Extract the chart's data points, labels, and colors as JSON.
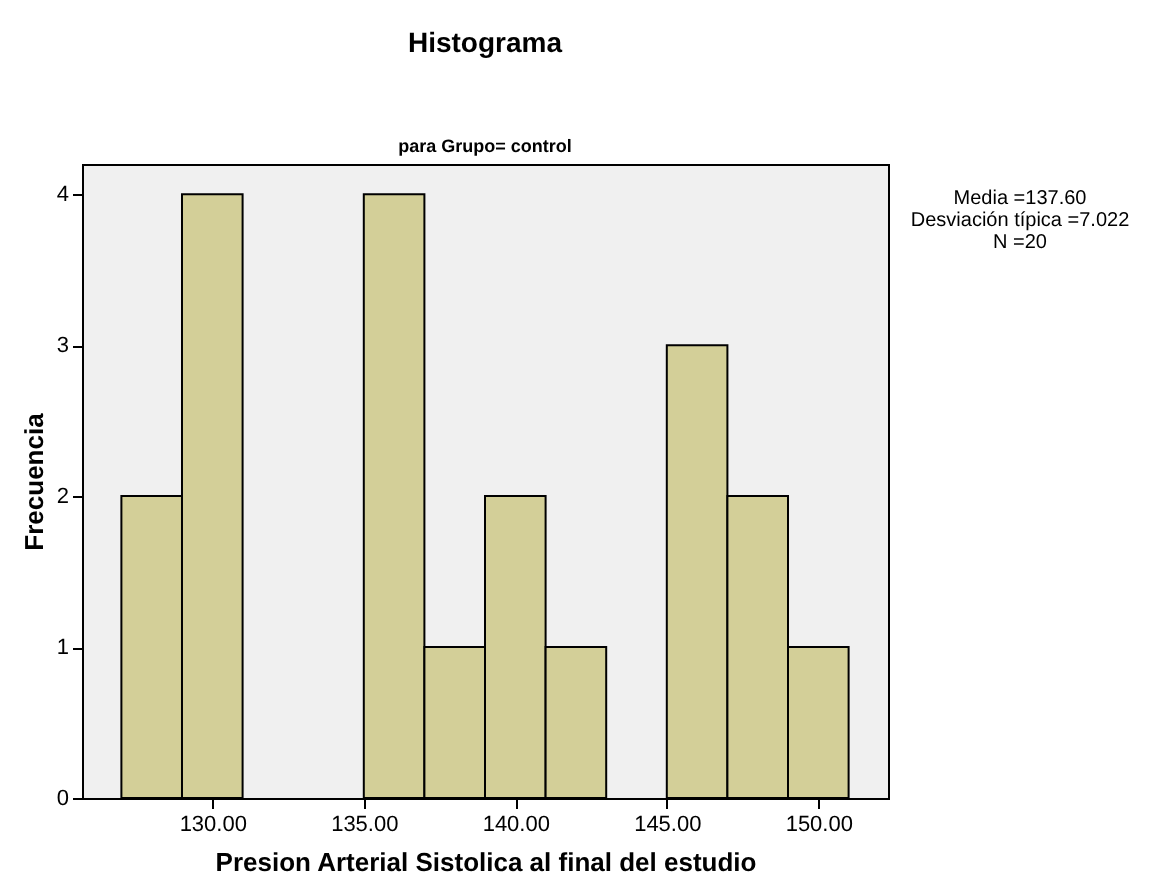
{
  "chart_data": {
    "type": "histogram",
    "title": "Histograma",
    "subtitle": "para Grupo= control",
    "xlabel": "Presion Arterial Sistolica al final del estudio",
    "ylabel": "Frecuencia",
    "bins": [
      127,
      129,
      131,
      133,
      135,
      137,
      139,
      141,
      143,
      145,
      147,
      149,
      151
    ],
    "values": [
      2,
      4,
      0,
      0,
      4,
      1,
      2,
      1,
      0,
      3,
      2,
      1
    ],
    "color": "#d3cf98",
    "xlim": [
      125.7,
      152.3
    ],
    "xticks": [
      {
        "value": 130,
        "label": "130.00"
      },
      {
        "value": 135,
        "label": "135.00"
      },
      {
        "value": 140,
        "label": "140.00"
      },
      {
        "value": 145,
        "label": "145.00"
      },
      {
        "value": 150,
        "label": "150.00"
      }
    ],
    "ylim": [
      0,
      4.2
    ],
    "yticks": [
      0,
      1,
      2,
      3,
      4
    ],
    "grid": false,
    "annotations": [
      "Media =137.60",
      "Desviación típica =7.022",
      "N =20"
    ]
  }
}
